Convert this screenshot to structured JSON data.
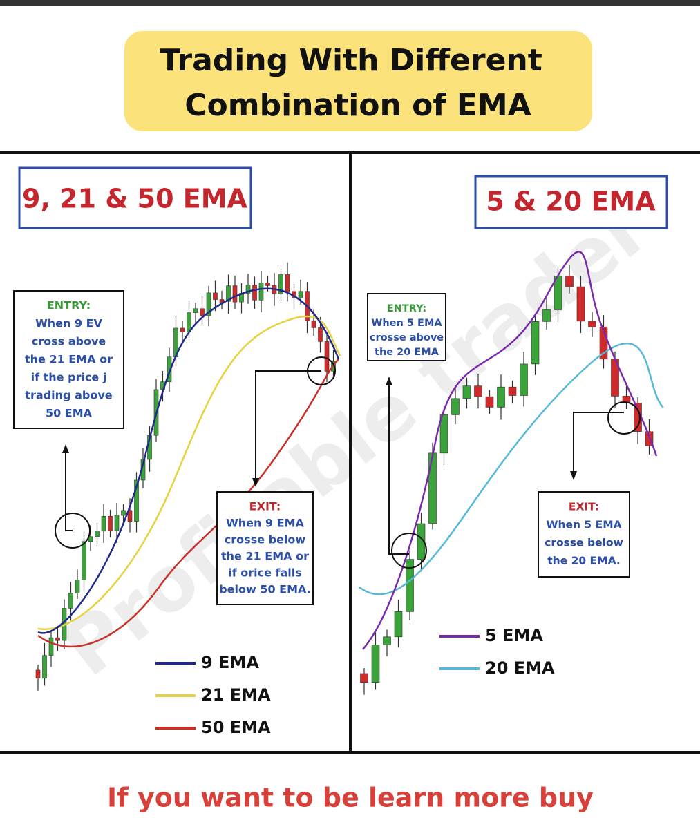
{
  "header": {
    "title_lines": [
      "Trading With Different",
      "Combination of EMA"
    ]
  },
  "watermark": "Profitable trader",
  "panels": [
    {
      "heading": "9, 21 & 50 EMA",
      "entry": {
        "label": "ENTRY:",
        "lines": [
          "When 9 EV",
          "cross above",
          "the 21 EMA or",
          "if the price j",
          "trading above",
          "50 EMA"
        ]
      },
      "exit": {
        "label": "EXIT:",
        "lines": [
          "When 9 EMA",
          "crosse below",
          "the 21 EMA or",
          "if orice falls",
          "below 50 EMA."
        ]
      },
      "legend": [
        "9 EMA",
        "21 EMA",
        "50 EMA"
      ]
    },
    {
      "heading": "5 & 20 EMA",
      "entry": {
        "label": "ENTRY:",
        "lines": [
          "When 5 EMA",
          "crosse above",
          "the 20 EMA"
        ]
      },
      "exit": {
        "label": "EXIT:",
        "lines": [
          "When 5 EMA",
          "crosse below",
          "the 20 EMA."
        ]
      },
      "legend": [
        "5 EMA",
        "20 EMA"
      ]
    }
  ],
  "footer": {
    "text": "If you want to be learn more buy"
  }
}
